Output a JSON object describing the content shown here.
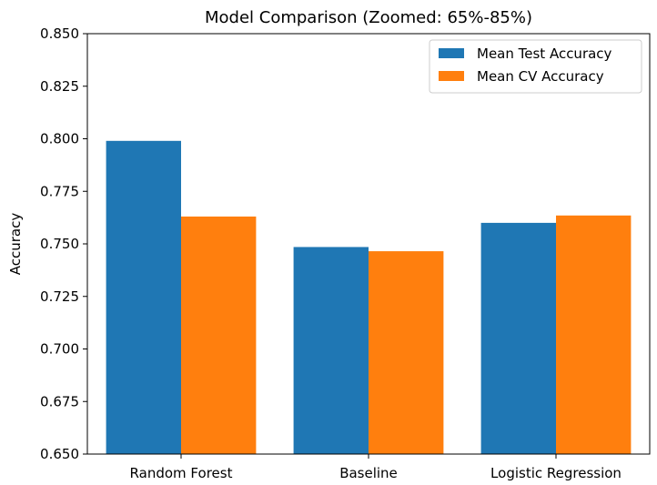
{
  "chart_data": {
    "type": "bar",
    "title": "Model Comparison (Zoomed: 65%-85%)",
    "xlabel": "",
    "ylabel": "Accuracy",
    "ylim": [
      0.65,
      0.85
    ],
    "yticks": [
      "0.650",
      "0.675",
      "0.700",
      "0.725",
      "0.750",
      "0.775",
      "0.800",
      "0.825",
      "0.850"
    ],
    "categories": [
      "Random Forest",
      "Baseline",
      "Logistic Regression"
    ],
    "series": [
      {
        "name": "Mean Test Accuracy",
        "color": "#1f77b4",
        "values": [
          0.799,
          0.7485,
          0.76
        ]
      },
      {
        "name": "Mean CV Accuracy",
        "color": "#ff7f0e",
        "values": [
          0.763,
          0.7465,
          0.7635
        ]
      }
    ],
    "legend": "top-right",
    "grid": false
  }
}
